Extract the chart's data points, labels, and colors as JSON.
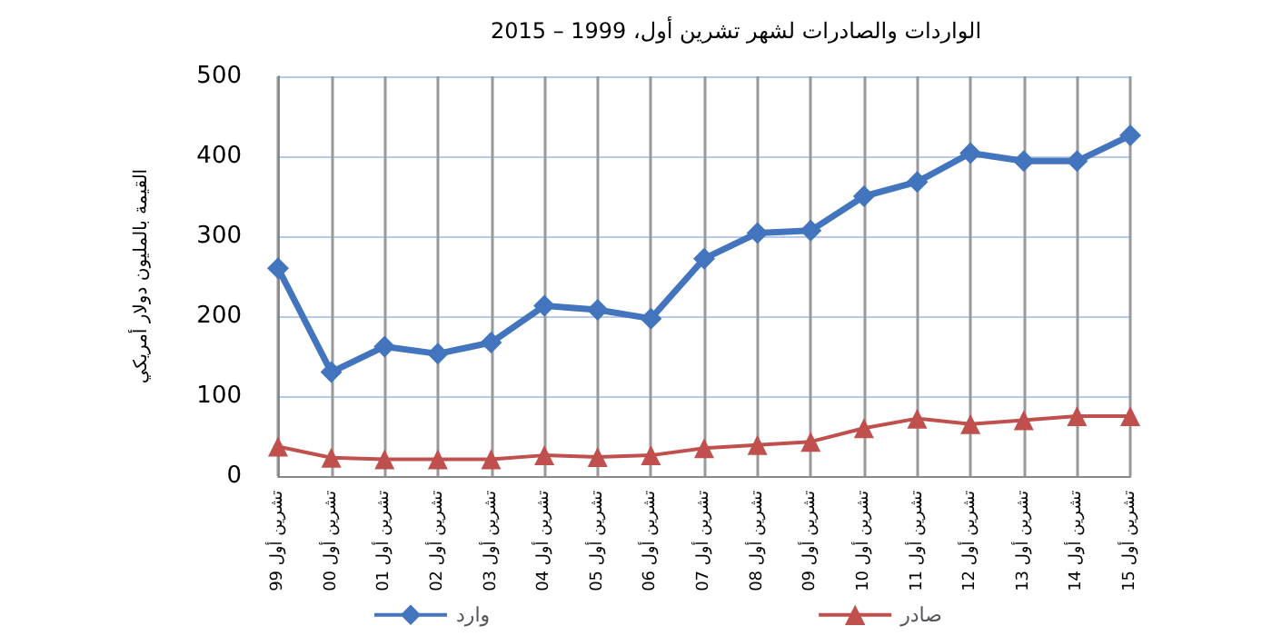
{
  "chart_data": {
    "type": "line",
    "title": "الواردات والصادرات لشهر تشرين أول، 1999 – 2015",
    "ylabel": "القيمة بالمليون دولار أمريكي",
    "categories": [
      "تشرين أول 99",
      "تشرين أول 00",
      "تشرين أول 01",
      "تشرين أول 02",
      "تشرين أول 03",
      "تشرين أول 04",
      "تشرين أول 05",
      "تشرين أول 06",
      "تشرين أول 07",
      "تشرين أول 08",
      "تشرين أول 09",
      "تشرين أول 10",
      "تشرين أول 11",
      "تشرين أول 12",
      "تشرين أول 13",
      "تشرين أول 14",
      "تشرين أول 15"
    ],
    "series": [
      {
        "name": "وارد",
        "color": "#4275be",
        "marker": "diamond",
        "values": [
          260,
          130,
          162,
          153,
          167,
          213,
          208,
          197,
          272,
          304,
          307,
          350,
          368,
          404,
          394,
          394,
          426
        ]
      },
      {
        "name": "صادر",
        "color": "#c0504d",
        "marker": "triangle",
        "values": [
          37,
          23,
          21,
          21,
          21,
          26,
          24,
          26,
          35,
          39,
          43,
          60,
          72,
          65,
          70,
          75,
          75
        ]
      }
    ],
    "ylim": [
      0,
      500
    ],
    "yticks": [
      0,
      100,
      200,
      300,
      400,
      500
    ],
    "grid": true,
    "legend": "bottom",
    "line_style": "solid"
  }
}
